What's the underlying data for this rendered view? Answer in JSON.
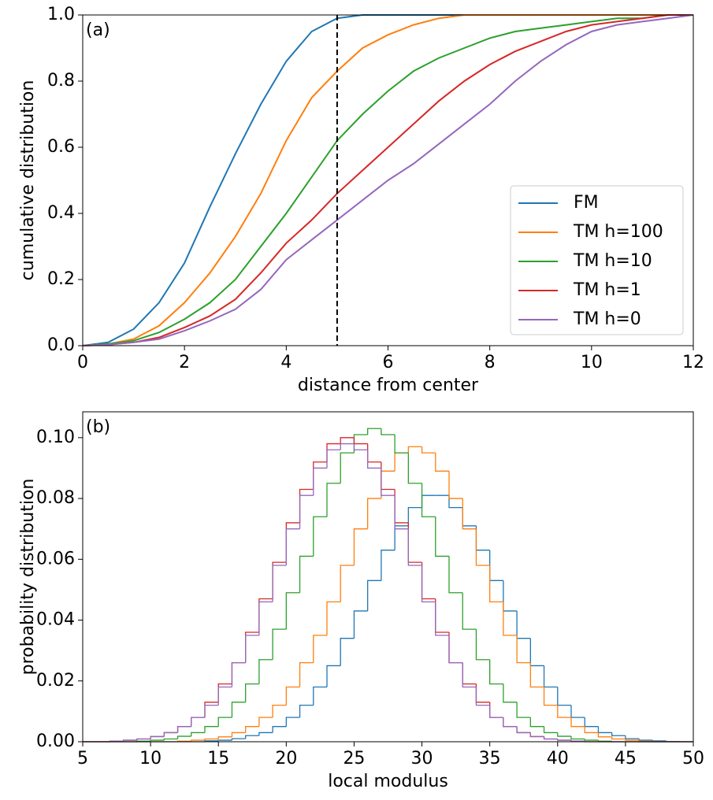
{
  "chart_data": [
    {
      "type": "line",
      "annotation": "(a)",
      "x_label": "distance from center",
      "y_label": "cumulative distribution",
      "x": [
        0,
        0.5,
        1,
        1.5,
        2,
        2.5,
        3,
        3.5,
        4,
        4.5,
        5,
        5.5,
        6,
        6.5,
        7,
        7.5,
        8,
        8.5,
        9,
        9.5,
        10,
        10.5,
        11,
        11.5,
        12
      ],
      "series": [
        {
          "name": "FM",
          "color": "#1f77b4",
          "values": [
            0,
            0.01,
            0.05,
            0.13,
            0.25,
            0.42,
            0.58,
            0.73,
            0.86,
            0.95,
            0.99,
            1,
            1,
            1,
            1,
            1,
            1,
            1,
            1,
            1,
            1,
            1,
            1,
            1,
            1
          ]
        },
        {
          "name": "TM h=100",
          "color": "#ff7f0e",
          "values": [
            0,
            0.005,
            0.02,
            0.06,
            0.13,
            0.22,
            0.33,
            0.46,
            0.62,
            0.75,
            0.83,
            0.9,
            0.94,
            0.97,
            0.99,
            1,
            1,
            1,
            1,
            1,
            1,
            1,
            1,
            1,
            1
          ]
        },
        {
          "name": "TM h=10",
          "color": "#2ca02c",
          "values": [
            0,
            0.005,
            0.015,
            0.04,
            0.08,
            0.13,
            0.2,
            0.3,
            0.4,
            0.51,
            0.62,
            0.7,
            0.77,
            0.83,
            0.87,
            0.9,
            0.93,
            0.95,
            0.96,
            0.97,
            0.98,
            0.99,
            0.99,
            1,
            1
          ]
        },
        {
          "name": "TM h=1",
          "color": "#d62728",
          "values": [
            0,
            0.003,
            0.01,
            0.025,
            0.055,
            0.09,
            0.14,
            0.22,
            0.31,
            0.38,
            0.46,
            0.53,
            0.6,
            0.67,
            0.74,
            0.8,
            0.85,
            0.89,
            0.92,
            0.95,
            0.97,
            0.98,
            0.99,
            1,
            1
          ]
        },
        {
          "name": "TM h=0",
          "color": "#9467bd",
          "values": [
            0,
            0.003,
            0.01,
            0.02,
            0.045,
            0.075,
            0.11,
            0.17,
            0.26,
            0.32,
            0.38,
            0.44,
            0.5,
            0.55,
            0.61,
            0.67,
            0.73,
            0.8,
            0.86,
            0.91,
            0.95,
            0.97,
            0.98,
            0.99,
            1
          ]
        }
      ],
      "vline": 5,
      "xlim": [
        0,
        12
      ],
      "xticks": [
        0,
        2,
        4,
        6,
        8,
        10,
        12
      ],
      "ylim": [
        0,
        1
      ],
      "yticks": [
        {
          "value": 0,
          "label": "0.0"
        },
        {
          "value": 0.2,
          "label": "0.2"
        },
        {
          "value": 0.4,
          "label": "0.4"
        },
        {
          "value": 0.6,
          "label": "0.6"
        },
        {
          "value": 0.8,
          "label": "0.8"
        },
        {
          "value": 1,
          "label": "1.0"
        }
      ],
      "legend": "lower right"
    },
    {
      "type": "histogram",
      "annotation": "(b)",
      "x_label": "local modulus",
      "y_label": "probability distribution",
      "bins": [
        5,
        6,
        7,
        8,
        9,
        10,
        11,
        12,
        13,
        14,
        15,
        16,
        17,
        18,
        19,
        20,
        21,
        22,
        23,
        24,
        25,
        26,
        27,
        28,
        29,
        30,
        31,
        32,
        33,
        34,
        35,
        36,
        37,
        38,
        39,
        40,
        41,
        42,
        43,
        44,
        45,
        46,
        47,
        48,
        49,
        50
      ],
      "series": [
        {
          "color": "#1f77b4",
          "values": [
            0,
            0,
            0,
            0,
            0,
            0,
            0,
            0,
            0,
            0.0003,
            0.0005,
            0.001,
            0.002,
            0.003,
            0.005,
            0.008,
            0.012,
            0.018,
            0.025,
            0.034,
            0.043,
            0.053,
            0.063,
            0.071,
            0.077,
            0.081,
            0.081,
            0.077,
            0.071,
            0.063,
            0.053,
            0.043,
            0.034,
            0.025,
            0.018,
            0.012,
            0.008,
            0.005,
            0.003,
            0.002,
            0.001,
            0.0005,
            0.0003,
            0.0001,
            0
          ]
        },
        {
          "color": "#ff7f0e",
          "values": [
            0,
            0,
            0,
            0,
            0,
            0,
            0,
            0.0002,
            0.0005,
            0.0009,
            0.0016,
            0.003,
            0.005,
            0.008,
            0.012,
            0.018,
            0.026,
            0.035,
            0.046,
            0.058,
            0.07,
            0.08,
            0.089,
            0.095,
            0.097,
            0.095,
            0.089,
            0.08,
            0.07,
            0.058,
            0.046,
            0.035,
            0.026,
            0.018,
            0.012,
            0.008,
            0.005,
            0.003,
            0.0016,
            0.0009,
            0.0005,
            0.0002,
            0,
            0,
            0
          ]
        },
        {
          "color": "#2ca02c",
          "values": [
            0,
            0,
            0,
            0,
            0.0002,
            0.0005,
            0.0009,
            0.0018,
            0.003,
            0.005,
            0.008,
            0.013,
            0.019,
            0.027,
            0.037,
            0.049,
            0.061,
            0.074,
            0.085,
            0.095,
            0.101,
            0.103,
            0.101,
            0.095,
            0.085,
            0.074,
            0.061,
            0.049,
            0.037,
            0.027,
            0.019,
            0.013,
            0.008,
            0.005,
            0.003,
            0.0018,
            0.0009,
            0.0005,
            0.0002,
            0,
            0,
            0,
            0,
            0,
            0
          ]
        },
        {
          "color": "#d62728",
          "values": [
            0,
            0,
            0.0002,
            0.0005,
            0.0009,
            0.0017,
            0.003,
            0.005,
            0.008,
            0.013,
            0.019,
            0.026,
            0.036,
            0.047,
            0.059,
            0.072,
            0.083,
            0.092,
            0.098,
            0.1,
            0.098,
            0.092,
            0.083,
            0.072,
            0.059,
            0.047,
            0.036,
            0.026,
            0.019,
            0.013,
            0.008,
            0.005,
            0.003,
            0.0017,
            0.0009,
            0.0005,
            0.0002,
            0,
            0,
            0,
            0,
            0,
            0,
            0,
            0
          ]
        },
        {
          "color": "#9467bd",
          "values": [
            0,
            0,
            0.0002,
            0.0005,
            0.0009,
            0.0017,
            0.003,
            0.005,
            0.008,
            0.012,
            0.018,
            0.026,
            0.035,
            0.046,
            0.058,
            0.07,
            0.081,
            0.09,
            0.096,
            0.098,
            0.096,
            0.09,
            0.081,
            0.07,
            0.058,
            0.046,
            0.035,
            0.026,
            0.018,
            0.012,
            0.008,
            0.005,
            0.003,
            0.0017,
            0.0009,
            0.0005,
            0.0002,
            0,
            0,
            0,
            0,
            0,
            0,
            0,
            0
          ]
        }
      ],
      "xlim": [
        5,
        50
      ],
      "xticks": [
        5,
        10,
        15,
        20,
        25,
        30,
        35,
        40,
        45,
        50
      ],
      "ylim": [
        0,
        0.1085
      ],
      "yticks": [
        {
          "value": 0,
          "label": "0.00"
        },
        {
          "value": 0.02,
          "label": "0.02"
        },
        {
          "value": 0.04,
          "label": "0.04"
        },
        {
          "value": 0.06,
          "label": "0.06"
        },
        {
          "value": 0.08,
          "label": "0.08"
        },
        {
          "value": 0.1,
          "label": "0.10"
        }
      ]
    }
  ]
}
